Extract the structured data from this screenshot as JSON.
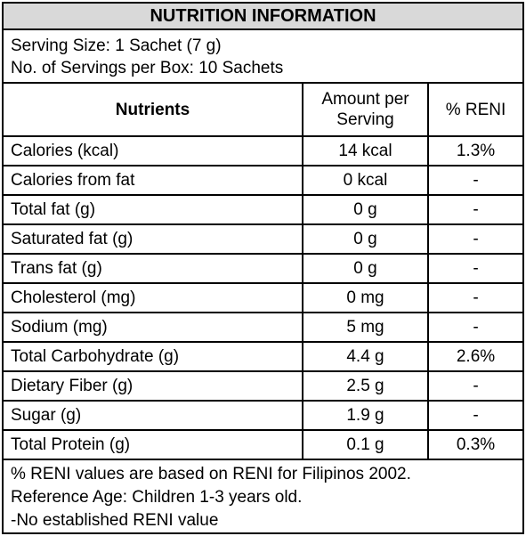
{
  "title": "NUTRITION INFORMATION",
  "serving_size": "Serving Size: 1 Sachet (7 g)",
  "servings_per_box": "No. of Servings per Box: 10 Sachets",
  "headers": {
    "nutrients": "Nutrients",
    "amount_line1": "Amount per",
    "amount_line2": "Serving",
    "reni": "% RENI"
  },
  "rows": [
    {
      "name": "Calories (kcal)",
      "amount": "14 kcal",
      "reni": "1.3%"
    },
    {
      "name": "Calories from fat",
      "amount": "0 kcal",
      "reni": "-"
    },
    {
      "name": "Total fat (g)",
      "amount": "0 g",
      "reni": "-"
    },
    {
      "name": "Saturated fat (g)",
      "amount": "0 g",
      "reni": "-"
    },
    {
      "name": "Trans fat (g)",
      "amount": "0 g",
      "reni": "-"
    },
    {
      "name": "Cholesterol (mg)",
      "amount": "0 mg",
      "reni": "-"
    },
    {
      "name": "Sodium (mg)",
      "amount": "5 mg",
      "reni": "-"
    },
    {
      "name": "Total Carbohydrate (g)",
      "amount": "4.4 g",
      "reni": "2.6%"
    },
    {
      "name": "Dietary Fiber (g)",
      "amount": "2.5 g",
      "reni": "-"
    },
    {
      "name": "Sugar (g)",
      "amount": "1.9 g",
      "reni": "-"
    },
    {
      "name": "Total Protein (g)",
      "amount": "0.1 g",
      "reni": "0.3%"
    }
  ],
  "notes": [
    "% RENI values are based on RENI for Filipinos 2002.",
    "Reference Age: Children 1-3 years old.",
    "-No established RENI value"
  ],
  "colors": {
    "header_background": "#d9d9d9",
    "border": "#000000"
  }
}
